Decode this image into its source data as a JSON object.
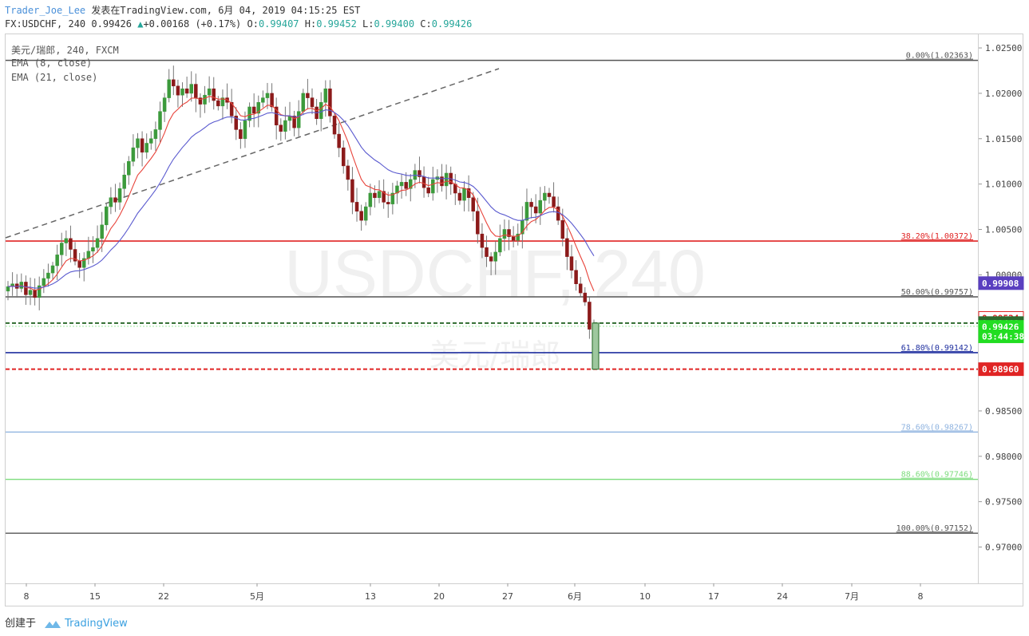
{
  "header": {
    "author": "Trader_Joe_Lee",
    "published": "发表在TradingView.com, 6月 04, 2019 04:15:25 EST",
    "symbol": "FX:USDCHF, 240",
    "last": "0.99426",
    "change": "+0.00168 (+0.17%)",
    "o_label": "O:",
    "o_value": "0.99407",
    "h_label": "H:",
    "h_value": "0.99452",
    "l_label": "L:",
    "l_value": "0.99400",
    "c_label": "C:",
    "c_value": "0.99426"
  },
  "legend": {
    "title": "美元/瑞郎, 240, FXCM",
    "ema_fast": "EMA (8, close)",
    "ema_slow": "EMA (21, close)"
  },
  "watermark": {
    "symbol": "USDCHF, 240",
    "name": "美元/瑞郎"
  },
  "footer": {
    "created_by": "创建于",
    "brand": "TradingView"
  },
  "colors": {
    "bull": "#3c9a3c",
    "bear": "#8b1a1a",
    "ema_fast": "#e8433a",
    "ema_slow": "#5a5acf",
    "fib_0": "#555555",
    "fib_382": "#e02424",
    "fib_50": "#555555",
    "fib_618": "#1f2f9f",
    "fib_786": "#90b4e0",
    "fib_886": "#7ddc7d",
    "fib_100": "#555555"
  },
  "chart_data": {
    "type": "candlestick",
    "symbol": "USDCHF",
    "timeframe": "240",
    "ylim": [
      0.966,
      1.0265
    ],
    "price_ticks": [
      "1.02500",
      "1.02000",
      "1.01500",
      "1.01000",
      "1.00500",
      "1.00000",
      "0.98500",
      "0.98000",
      "0.97500",
      "0.97000"
    ],
    "price_tick_values": [
      1.025,
      1.02,
      1.015,
      1.01,
      1.005,
      1.0,
      0.985,
      0.98,
      0.975,
      0.97
    ],
    "time_ticks": [
      "8",
      "15",
      "22",
      "5月",
      "13",
      "20",
      "27",
      "6月",
      "10",
      "17",
      "24",
      "7月",
      "8"
    ],
    "fib_levels": [
      {
        "label": "0.00%(1.02363)",
        "value": 1.02363,
        "color": "#555555",
        "style": "solid"
      },
      {
        "label": "38.20%(1.00372)",
        "value": 1.00372,
        "color": "#e02424",
        "style": "solid"
      },
      {
        "label": "50.00%(0.99757)",
        "value": 0.99757,
        "color": "#555555",
        "style": "solid"
      },
      {
        "label": "61.80%(0.99142)",
        "value": 0.99142,
        "color": "#1f2f9f",
        "style": "solid"
      },
      {
        "label": "78.60%(0.98267)",
        "value": 0.98267,
        "color": "#90b4e0",
        "style": "solid"
      },
      {
        "label": "88.60%(0.97746)",
        "value": 0.97746,
        "color": "#7ddc7d",
        "style": "solid"
      },
      {
        "label": "100.00%(0.97152)",
        "value": 0.97152,
        "color": "#555555",
        "style": "solid"
      }
    ],
    "horizontal_lines": [
      {
        "value": 0.99468,
        "color": "#2e6b2e",
        "style": "dashed"
      },
      {
        "value": 0.9896,
        "color": "#e02424",
        "style": "dashed"
      }
    ],
    "price_labels": [
      {
        "text": "0.99908",
        "value": 0.99908,
        "bg": "#5a3fc0",
        "fg": "#ffffff"
      },
      {
        "text": "0.99524",
        "value": 0.99524,
        "bg": "#ffffff",
        "fg": "#e02424"
      },
      {
        "text": "0.99468",
        "value": 0.99468,
        "bg": "#2e6b2e",
        "fg": "#ffffff"
      },
      {
        "text": "0.99426",
        "value": 0.99426,
        "bg": "#22dd22",
        "fg": "#ffffff"
      },
      {
        "text": "03:44:38",
        "value": 0.99322,
        "bg": "#22dd22",
        "fg": "#ffffff"
      },
      {
        "text": "0.98960",
        "value": 0.9896,
        "bg": "#e02424",
        "fg": "#ffffff"
      }
    ],
    "closes": [
      0.9987,
      0.999,
      0.9985,
      0.9992,
      0.9978,
      0.9983,
      0.9975,
      0.9988,
      0.9996,
      1.0002,
      1.001,
      1.0022,
      1.0035,
      1.004,
      1.0028,
      1.0015,
      1.0008,
      1.0018,
      1.0026,
      1.003,
      1.004,
      1.0055,
      1.0075,
      1.0085,
      1.008,
      1.0095,
      1.011,
      1.0125,
      1.014,
      1.015,
      1.0135,
      1.0145,
      1.015,
      1.016,
      1.018,
      1.0195,
      1.0215,
      1.0208,
      1.0198,
      1.0205,
      1.02,
      1.021,
      1.0195,
      1.0188,
      1.0198,
      1.0205,
      1.0192,
      1.0186,
      1.0195,
      1.019,
      1.0175,
      1.016,
      1.015,
      1.017,
      1.0185,
      1.0178,
      1.019,
      1.0195,
      1.02,
      1.0185,
      1.0165,
      1.0158,
      1.017,
      1.0175,
      1.0162,
      1.018,
      1.02,
      1.0195,
      1.0185,
      1.0172,
      1.019,
      1.0205,
      1.0175,
      1.0155,
      1.014,
      1.012,
      1.0105,
      1.008,
      1.007,
      1.006,
      1.0075,
      1.009,
      1.0085,
      1.0092,
      1.008,
      1.0078,
      1.009,
      1.0098,
      1.0102,
      1.0095,
      1.0105,
      1.0115,
      1.0108,
      1.0096,
      1.009,
      1.0105,
      1.0108,
      1.0098,
      1.0112,
      1.01,
      1.009,
      1.0082,
      1.0095,
      1.0085,
      1.007,
      1.0045,
      1.003,
      1.002,
      1.0015,
      1.0025,
      1.004,
      1.005,
      1.0042,
      1.0038,
      1.0045,
      1.006,
      1.008,
      1.0075,
      1.0068,
      1.0082,
      1.009,
      1.0086,
      1.0075,
      1.006,
      1.004,
      1.002,
      1.0005,
      0.999,
      0.998,
      0.997,
      0.994,
      0.9942
    ]
  }
}
